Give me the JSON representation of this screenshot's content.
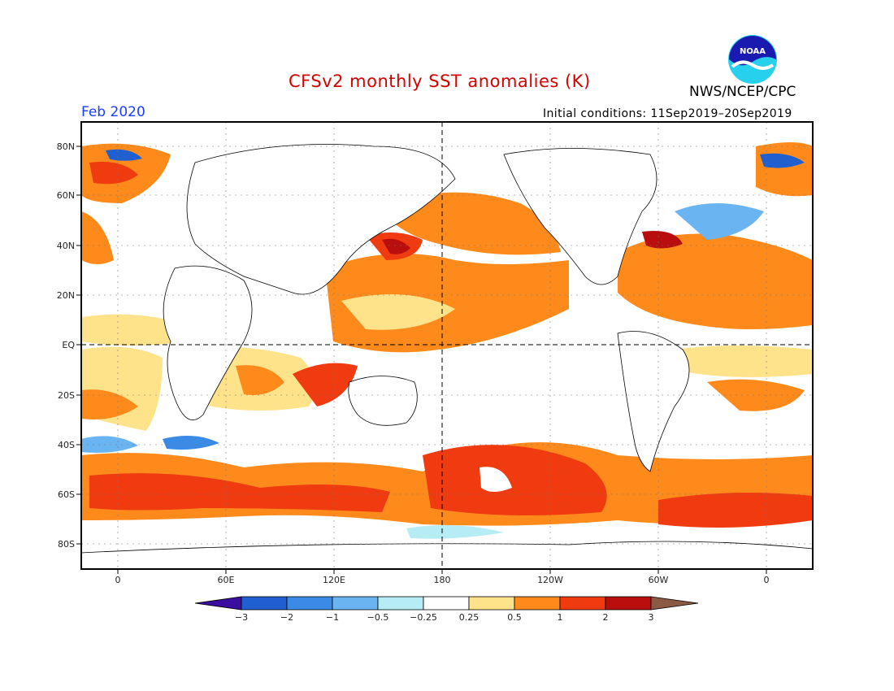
{
  "header": {
    "title": "CFSv2 monthly SST anomalies (K)",
    "agency": "NWS/NCEP/CPC",
    "month": "Feb 2020",
    "initial_conditions": "Initial conditions: 11Sep2019–20Sep2019",
    "logo_text": "NOAA"
  },
  "map": {
    "lat_labels": [
      "80N",
      "60N",
      "40N",
      "20N",
      "EQ",
      "20S",
      "40S",
      "60S",
      "80S"
    ],
    "lon_labels": [
      "0",
      "60E",
      "120E",
      "180",
      "120W",
      "60W",
      "0"
    ]
  },
  "colorbar": {
    "labels": [
      "−3",
      "−2",
      "−1",
      "−0.5",
      "−0.25",
      "0.25",
      "0.5",
      "1",
      "2",
      "3"
    ],
    "colors": [
      "#3a0fa0",
      "#1f5fd0",
      "#3a8ae6",
      "#6ab4f2",
      "#b6ecf4",
      "#ffffff",
      "#ffe38a",
      "#ff8a1c",
      "#f03a10",
      "#b80e0e",
      "#8a5a44"
    ]
  }
}
